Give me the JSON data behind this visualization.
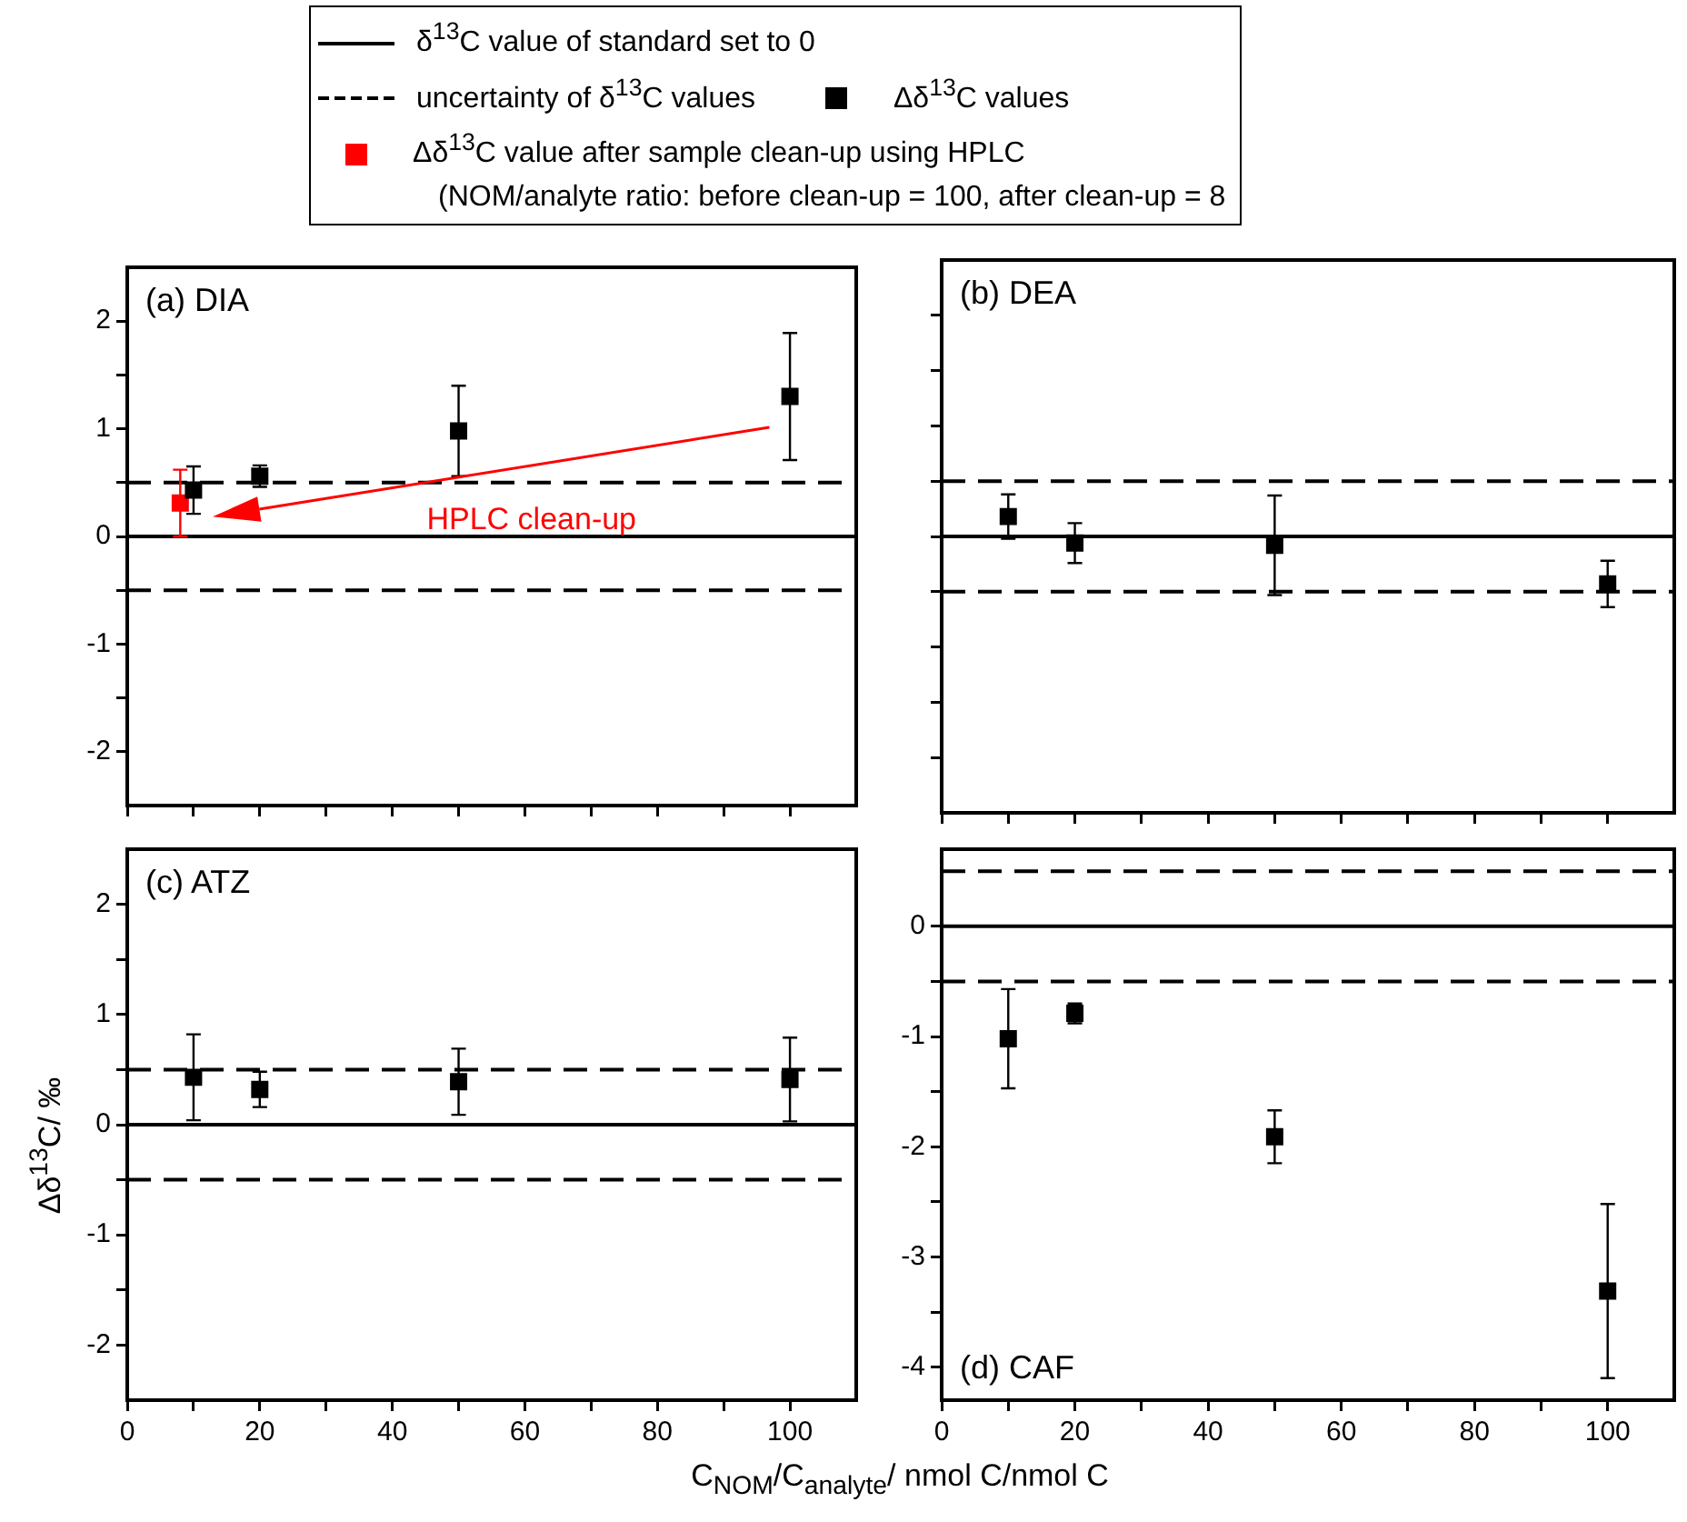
{
  "chart_data": [
    {
      "type": "scatter",
      "title": "(a) DIA",
      "legend": "top",
      "tick_labels": "y",
      "xlim": [
        0,
        110
      ],
      "xticks": [
        0,
        {
          "value": 10,
          "label": null
        },
        20,
        {
          "value": 30,
          "label": null
        },
        40,
        {
          "value": 50,
          "label": null
        },
        60,
        {
          "value": 70,
          "label": null
        },
        80,
        {
          "value": 90,
          "label": null
        },
        100
      ],
      "ylim": [
        -2.5,
        2.5
      ],
      "yticks": [
        -2,
        {
          "value": -1.5,
          "label": null
        },
        -1,
        {
          "value": -0.5,
          "label": null
        },
        0,
        {
          "value": 0.5,
          "label": null
        },
        1,
        {
          "value": 1.5,
          "label": null
        },
        2
      ],
      "annotations": [
        "HPLC clean-up",
        "(NOM/analyte ratio: before clean-up = 100, after clean-up = 8"
      ],
      "series": [
        {
          "type": "line",
          "name": "δ$^{13}$C value of standard set to 0",
          "color": "#000000",
          "x": [
            0,
            110
          ],
          "values": [
            0,
            0
          ],
          "line_style": "solid",
          "marker": "none"
        },
        {
          "type": "line",
          "name": "uncertainty of δ$^{13}$C values",
          "color": "#000000",
          "x": [
            0,
            110
          ],
          "values": [
            0.5,
            0.5
          ],
          "line_style": "dashed",
          "marker": "none"
        },
        {
          "type": "line",
          "color": "#000000",
          "x": [
            0,
            110
          ],
          "values": [
            -0.5,
            -0.5
          ],
          "line_style": "dashed",
          "marker": "none"
        },
        {
          "type": "scatter",
          "name": "Δδ$^{13}$C values",
          "color": "#000000",
          "marker": "square",
          "x": [
            10,
            20,
            50,
            100
          ],
          "values": [
            0.43,
            0.56,
            0.98,
            1.3
          ],
          "errors": [
            0.22,
            0.1,
            0.42,
            0.59
          ]
        },
        {
          "type": "scatter",
          "name": "Δδ$^{13}$C value after sample clean-up using HPLC",
          "color": "#ff0000",
          "marker": "square",
          "x": [
            8
          ],
          "values": [
            0.31
          ],
          "errors": [
            0.31
          ]
        }
      ]
    },
    {
      "type": "scatter",
      "title": "(b) DEA",
      "tick_labels": false,
      "xlim": [
        0,
        110
      ],
      "xticks": [
        0,
        {
          "value": 10,
          "label": null
        },
        20,
        {
          "value": 30,
          "label": null
        },
        40,
        {
          "value": 50,
          "label": null
        },
        60,
        {
          "value": 70,
          "label": null
        },
        80,
        {
          "value": 90,
          "label": null
        },
        100
      ],
      "ylim": [
        -2.5,
        2.5
      ],
      "yticks": [
        -2,
        {
          "value": -1.5,
          "label": null
        },
        -1,
        {
          "value": -0.5,
          "label": null
        },
        0,
        {
          "value": 0.5,
          "label": null
        },
        1,
        {
          "value": 1.5,
          "label": null
        },
        2
      ],
      "series": [
        {
          "type": "line",
          "color": "#000000",
          "x": [
            0,
            110
          ],
          "values": [
            0,
            0
          ],
          "line_style": "solid",
          "marker": "none"
        },
        {
          "type": "line",
          "color": "#000000",
          "x": [
            0,
            110
          ],
          "values": [
            0.5,
            0.5
          ],
          "line_style": "dashed",
          "marker": "none"
        },
        {
          "type": "line",
          "color": "#000000",
          "x": [
            0,
            110
          ],
          "values": [
            -0.5,
            -0.5
          ],
          "line_style": "dashed",
          "marker": "none"
        },
        {
          "type": "scatter",
          "color": "#000000",
          "marker": "square",
          "x": [
            10,
            20,
            50,
            100
          ],
          "values": [
            0.18,
            -0.06,
            -0.08,
            -0.43
          ],
          "errors": [
            0.2,
            0.18,
            0.45,
            0.21
          ]
        }
      ]
    },
    {
      "type": "scatter",
      "title": "(c) ATZ",
      "xlabel": "C$_{NOM}$/C$_{analyte}$/ nmol C/nmol C",
      "ylabel": "Δδ$^{13}$C/ ‰",
      "xlim": [
        0,
        110
      ],
      "xticks": [
        0,
        {
          "value": 10,
          "label": null
        },
        20,
        {
          "value": 30,
          "label": null
        },
        40,
        {
          "value": 50,
          "label": null
        },
        60,
        {
          "value": 70,
          "label": null
        },
        80,
        {
          "value": 90,
          "label": null
        },
        100
      ],
      "ylim": [
        -2.5,
        2.5
      ],
      "yticks": [
        -2,
        {
          "value": -1.5,
          "label": null
        },
        -1,
        {
          "value": -0.5,
          "label": null
        },
        0,
        {
          "value": 0.5,
          "label": null
        },
        1,
        {
          "value": 1.5,
          "label": null
        },
        2
      ],
      "series": [
        {
          "type": "line",
          "color": "#000000",
          "x": [
            0,
            110
          ],
          "values": [
            0,
            0
          ],
          "line_style": "solid",
          "marker": "none"
        },
        {
          "type": "line",
          "color": "#000000",
          "x": [
            0,
            110
          ],
          "values": [
            0.5,
            0.5
          ],
          "line_style": "dashed",
          "marker": "none"
        },
        {
          "type": "line",
          "color": "#000000",
          "x": [
            0,
            110
          ],
          "values": [
            -0.5,
            -0.5
          ],
          "line_style": "dashed",
          "marker": "none"
        },
        {
          "type": "scatter",
          "color": "#000000",
          "marker": "square",
          "x": [
            10,
            20,
            50,
            100
          ],
          "values": [
            0.43,
            0.32,
            0.39,
            0.41
          ],
          "errors": [
            0.39,
            0.16,
            0.3,
            0.38
          ]
        }
      ]
    },
    {
      "type": "scatter",
      "title": "(d) CAF",
      "xlim": [
        0,
        110
      ],
      "xticks": [
        0,
        {
          "value": 10,
          "label": null
        },
        20,
        {
          "value": 30,
          "label": null
        },
        40,
        {
          "value": 50,
          "label": null
        },
        60,
        {
          "value": 70,
          "label": null
        },
        80,
        {
          "value": 90,
          "label": null
        },
        100
      ],
      "ylim": [
        -4.3,
        0.7
      ],
      "yticks": [
        -4,
        {
          "value": -3.5,
          "label": null
        },
        -3,
        {
          "value": -2.5,
          "label": null
        },
        -2,
        {
          "value": -1.5,
          "label": null
        },
        -1,
        {
          "value": -0.5,
          "label": null
        },
        0
      ],
      "series": [
        {
          "type": "line",
          "color": "#000000",
          "x": [
            0,
            110
          ],
          "values": [
            0,
            0
          ],
          "line_style": "solid",
          "marker": "none"
        },
        {
          "type": "line",
          "color": "#000000",
          "x": [
            0,
            110
          ],
          "values": [
            0.5,
            0.5
          ],
          "line_style": "dashed",
          "marker": "none"
        },
        {
          "type": "line",
          "color": "#000000",
          "x": [
            0,
            110
          ],
          "values": [
            -0.5,
            -0.5
          ],
          "line_style": "dashed",
          "marker": "none"
        },
        {
          "type": "scatter",
          "color": "#000000",
          "marker": "square",
          "x": [
            10,
            20,
            50,
            100
          ],
          "values": [
            -1.02,
            -0.79,
            -1.91,
            -3.31
          ],
          "errors": [
            0.45,
            0.09,
            0.24,
            0.79
          ]
        }
      ]
    }
  ]
}
